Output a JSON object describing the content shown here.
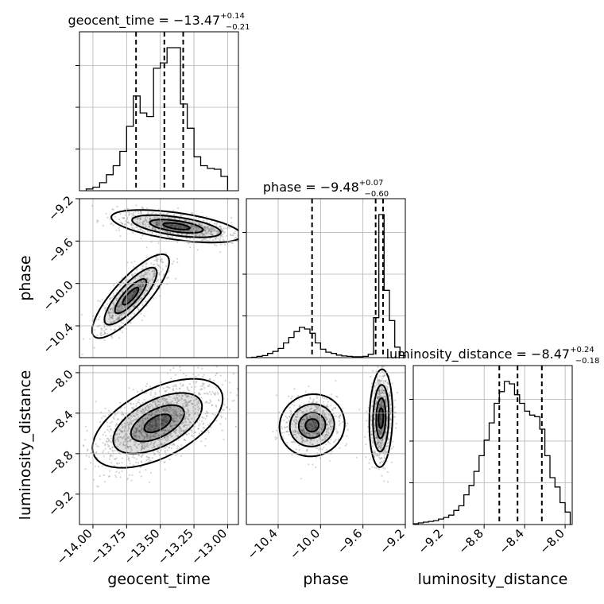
{
  "chart_data": {
    "type": "corner",
    "parameters": [
      "geocent_time",
      "phase",
      "luminosity_distance"
    ],
    "axis_labels": {
      "geocent_time": "geocent_time",
      "phase": "phase",
      "luminosity_distance": "luminosity_distance"
    },
    "ranges": {
      "geocent_time": [
        -14.1,
        -12.92
      ],
      "phase": [
        -10.7,
        -9.2
      ],
      "luminosity_distance": [
        -9.5,
        -7.93
      ]
    },
    "ticks": {
      "geocent_time": {
        "values": [
          -14.0,
          -13.75,
          -13.5,
          -13.25,
          -13.0
        ],
        "labels": [
          "−14.00",
          "−13.75",
          "−13.50",
          "−13.25",
          "−13.00"
        ]
      },
      "phase": {
        "values": [
          -10.4,
          -10.0,
          -9.6,
          -9.2
        ],
        "labels": [
          "−10.4",
          "−10.0",
          "−9.6",
          "−9.2"
        ]
      },
      "luminosity_distance": {
        "values": [
          -9.2,
          -8.8,
          -8.4,
          -8.0
        ],
        "labels": [
          "−9.2",
          "−8.8",
          "−8.4",
          "−8.0"
        ]
      }
    },
    "titles": {
      "geocent_time": {
        "name": "geocent_time",
        "median": "−13.47",
        "plus": "+0.14",
        "minus": "−0.21"
      },
      "phase": {
        "name": "phase",
        "median": "−9.48",
        "plus": "+0.07",
        "minus": "−0.60"
      },
      "luminosity_distance": {
        "name": "luminosity_distance",
        "median": "−8.47",
        "plus": "+0.24",
        "minus": "−0.18"
      }
    },
    "quantiles": {
      "geocent_time": [
        -13.68,
        -13.47,
        -13.33
      ],
      "phase": [
        -10.08,
        -9.48,
        -9.41
      ],
      "luminosity_distance": [
        -8.65,
        -8.47,
        -8.23
      ]
    },
    "histograms": {
      "geocent_time": {
        "edges": [
          -14.05,
          -14.0,
          -13.95,
          -13.9,
          -13.85,
          -13.8,
          -13.75,
          -13.7,
          -13.65,
          -13.6,
          -13.55,
          -13.5,
          -13.45,
          -13.4,
          -13.35,
          -13.3,
          -13.25,
          -13.2,
          -13.15,
          -13.1,
          -13.05,
          -13.0
        ],
        "counts": [
          2,
          4,
          9,
          18,
          28,
          44,
          72,
          106,
          87,
          83,
          137,
          143,
          160,
          160,
          97,
          70,
          38,
          28,
          25,
          24,
          16
        ]
      },
      "phase": {
        "edges": [
          -10.7,
          -10.65,
          -10.6,
          -10.55,
          -10.5,
          -10.45,
          -10.4,
          -10.35,
          -10.3,
          -10.25,
          -10.2,
          -10.15,
          -10.1,
          -10.05,
          -10.0,
          -9.95,
          -9.9,
          -9.85,
          -9.8,
          -9.75,
          -9.7,
          -9.65,
          -9.6,
          -9.55,
          -9.5,
          -9.45,
          -9.4,
          -9.35,
          -9.3,
          -9.25,
          -9.2
        ],
        "counts": [
          0,
          1,
          3,
          5,
          10,
          15,
          22,
          35,
          48,
          62,
          72,
          68,
          58,
          35,
          20,
          13,
          10,
          6,
          4,
          3,
          2,
          2,
          3,
          8,
          95,
          340,
          160,
          88,
          25,
          5
        ]
      },
      "luminosity_distance": {
        "edges": [
          -9.5,
          -9.45,
          -9.4,
          -9.35,
          -9.3,
          -9.25,
          -9.2,
          -9.15,
          -9.1,
          -9.05,
          -9.0,
          -8.95,
          -8.9,
          -8.85,
          -8.8,
          -8.75,
          -8.7,
          -8.65,
          -8.6,
          -8.55,
          -8.5,
          -8.45,
          -8.4,
          -8.35,
          -8.3,
          -8.25,
          -8.2,
          -8.15,
          -8.1,
          -8.05,
          -8.0,
          -7.95
        ],
        "counts": [
          1,
          2,
          3,
          4,
          5,
          7,
          9,
          12,
          18,
          24,
          38,
          50,
          68,
          88,
          108,
          130,
          155,
          170,
          183,
          180,
          166,
          155,
          145,
          140,
          138,
          122,
          88,
          60,
          48,
          28,
          16
        ]
      }
    },
    "grid": true
  }
}
